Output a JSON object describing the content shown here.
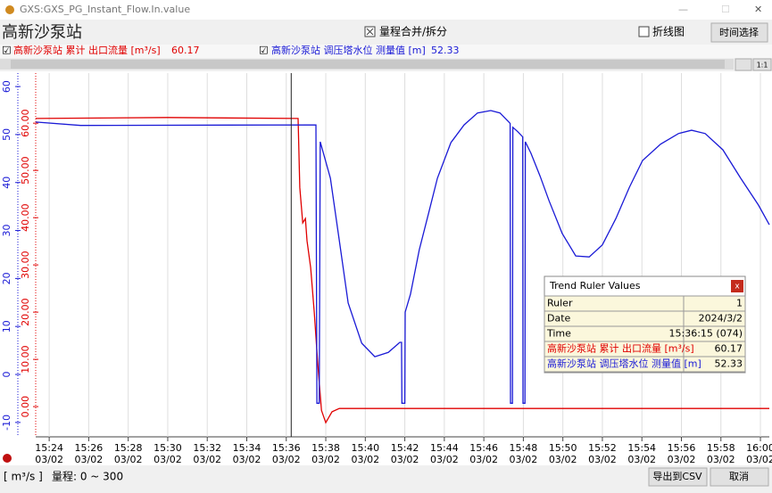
{
  "window": {
    "title": "GXS:GXS_PG_Instant_Flow.In.value"
  },
  "header": {
    "station": "高新沙泵站",
    "merge_checkbox": "量程合并/拆分",
    "line_checkbox": "折线图",
    "time_button": "时间选择"
  },
  "chart_data": {
    "type": "line",
    "xlim": [
      "15:23:19",
      "16:00:27"
    ],
    "xticks": [
      "15:24",
      "15:26",
      "15:28",
      "15:30",
      "15:32",
      "15:34",
      "15:36",
      "15:38",
      "15:40",
      "15:42",
      "15:44",
      "15:46",
      "15:48",
      "15:50",
      "15:52",
      "15:54",
      "15:56",
      "15:58",
      "16:00"
    ],
    "xtick_date": "03/02",
    "ylim": [
      -6.4,
      70.6
    ],
    "yticks": [
      {
        "value": 0,
        "label": "0.00"
      },
      {
        "value": 10,
        "label": "10.00"
      },
      {
        "value": 20,
        "label": "20.00"
      },
      {
        "value": 30,
        "label": "30.00"
      },
      {
        "value": 40,
        "label": "40.00"
      },
      {
        "value": 50,
        "label": "50.00"
      },
      {
        "value": 60,
        "label": "60.00"
      }
    ],
    "y2lim": [
      -13,
      62.8
    ],
    "y2ticks": [
      -10,
      0,
      10,
      20,
      30,
      40,
      50,
      60
    ],
    "grid": true,
    "series": [
      {
        "name": "高新沙泵站 累计 出口流量 [m³/s]",
        "color": "#e00000",
        "ruler_value": 60.17,
        "x": [
          "15:23:19",
          "15:30:00",
          "15:36:36",
          "15:36:41",
          "15:36:50",
          "15:36:58",
          "15:37:03",
          "15:37:14",
          "15:37:25",
          "15:37:36",
          "15:37:47",
          "15:38:00",
          "15:38:19",
          "15:38:41",
          "16:00:27"
        ],
        "values": [
          61.0,
          61.2,
          61.0,
          46.4,
          38.9,
          39.8,
          35.1,
          29.4,
          20.0,
          8.7,
          -0.8,
          -3.4,
          -1.1,
          -0.4,
          -0.4
        ]
      },
      {
        "name": "高新沙泵站 调压塔水位 测量值 [m]",
        "color": "#1a1ad6",
        "axis": "y2",
        "ruler_value": 52.33,
        "x": [
          "15:23:19",
          "15:25:35",
          "15:37:30",
          "15:37:33",
          "15:37:40",
          "15:37:43",
          "15:38:14",
          "15:38:41",
          "15:39:08",
          "15:39:49",
          "15:40:29",
          "15:41:10",
          "15:41:45",
          "15:41:50",
          "15:41:51",
          "15:42:00",
          "15:42:01",
          "15:42:17",
          "15:42:44",
          "15:43:12",
          "15:43:39",
          "15:44:20",
          "15:45:00",
          "15:45:41",
          "15:46:21",
          "15:46:49",
          "15:47:16",
          "15:47:20",
          "15:47:21",
          "15:47:27",
          "15:47:28",
          "15:47:43",
          "15:47:58",
          "15:47:59",
          "15:48:05",
          "15:48:06",
          "15:48:23",
          "15:48:51",
          "15:49:18",
          "15:49:58",
          "15:50:39",
          "15:51:20",
          "15:52:00",
          "15:52:41",
          "15:53:22",
          "15:54:02",
          "15:54:57",
          "15:55:51",
          "15:56:31",
          "15:57:12",
          "15:58:06",
          "15:59:00",
          "15:59:54",
          "16:00:27"
        ],
        "values": [
          52.6,
          51.9,
          52.0,
          -6,
          -6,
          48.5,
          40.9,
          27.9,
          14.9,
          6.5,
          3.7,
          4.6,
          6.7,
          6.7,
          -6,
          -6,
          13.0,
          16.7,
          26.0,
          33.5,
          40.9,
          48.3,
          52.0,
          54.5,
          55.0,
          54.5,
          52.6,
          52.3,
          -6,
          -6,
          51.5,
          50.6,
          49.5,
          -6,
          -6,
          48.5,
          46.1,
          41.3,
          36.2,
          29.4,
          24.7,
          24.5,
          27.0,
          32.5,
          39.0,
          44.6,
          48.0,
          50.2,
          50.9,
          50.2,
          46.8,
          40.9,
          35.3,
          31.2
        ]
      }
    ]
  },
  "ruler": {
    "title": "Trend Ruler Values",
    "close": "x",
    "rows": [
      [
        "Ruler",
        "1"
      ],
      [
        "Date",
        "2024/3/2"
      ],
      [
        "Time",
        "15:36:15 (074)"
      ]
    ]
  },
  "footer": {
    "unit": "[ m³/s ]",
    "range": "量程: 0 ~ 300",
    "export": "导出到CSV",
    "cancel": "取消"
  }
}
